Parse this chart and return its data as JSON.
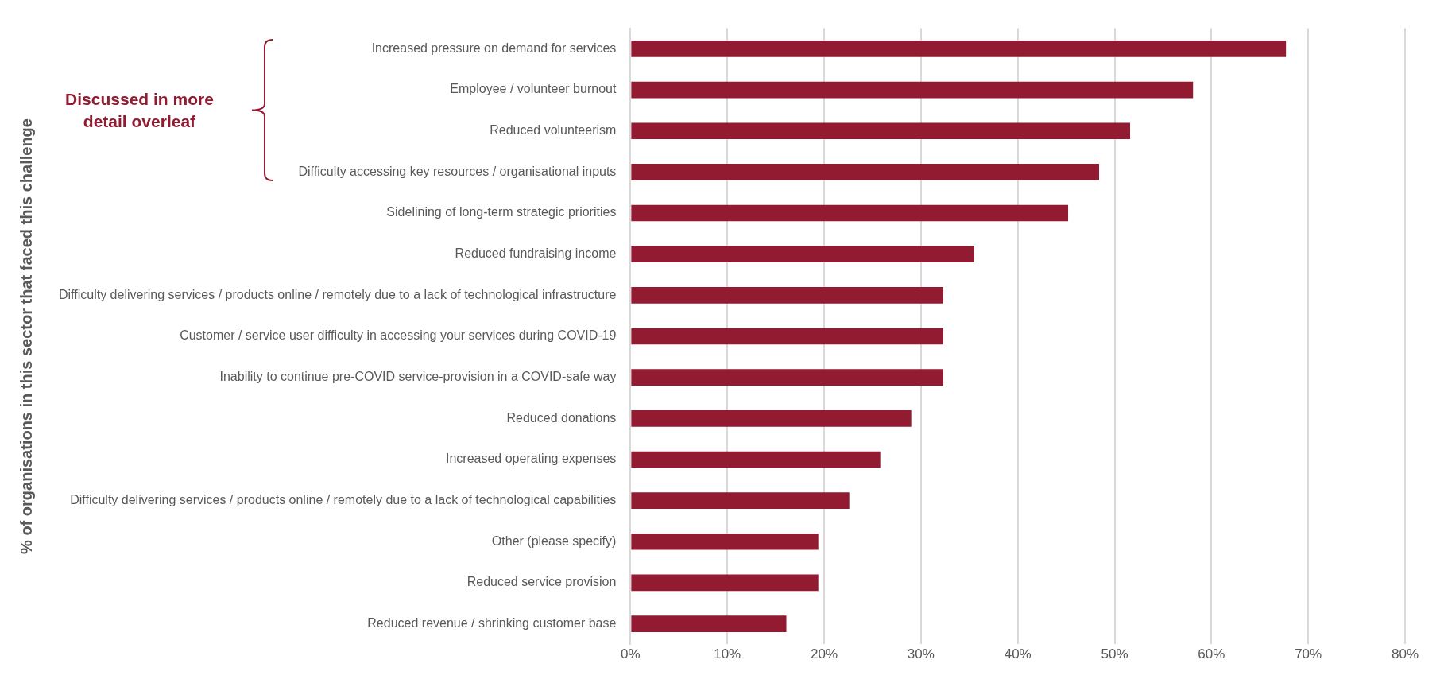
{
  "chart_data": {
    "type": "bar",
    "orientation": "horizontal",
    "ylabel": "% of organisations in this sector that faced this challenge",
    "categories": [
      "Increased pressure on demand for services",
      "Employee / volunteer burnout",
      "Reduced volunteerism",
      "Difficulty accessing key resources / organisational inputs",
      "Sidelining of long-term strategic priorities",
      "Reduced fundraising income",
      "Difficulty delivering services / products online / remotely due to a lack of technological infrastructure",
      "Customer / service user difficulty in accessing your services during COVID-19",
      "Inability to continue pre-COVID service-provision in a COVID-safe way",
      "Reduced donations",
      "Increased operating expenses",
      "Difficulty delivering services / products online / remotely due to a lack of technological capabilities",
      "Other (please specify)",
      "Reduced service provision",
      "Reduced revenue / shrinking customer base"
    ],
    "values": [
      67.7,
      58.1,
      51.6,
      48.4,
      45.2,
      35.5,
      32.3,
      32.3,
      32.3,
      29.0,
      25.8,
      22.6,
      19.4,
      19.4,
      16.1
    ],
    "color": "#921b31",
    "xlim": [
      0,
      80
    ],
    "xticks": [
      {
        "value": 0,
        "label": "0%"
      },
      {
        "value": 10,
        "label": "10%"
      },
      {
        "value": 20,
        "label": "20%"
      },
      {
        "value": 30,
        "label": "30%"
      },
      {
        "value": 40,
        "label": "40%"
      },
      {
        "value": 50,
        "label": "50%"
      },
      {
        "value": 60,
        "label": "60%"
      },
      {
        "value": 70,
        "label": "70%"
      },
      {
        "value": 80,
        "label": "80%"
      }
    ],
    "grid": "x",
    "legend": false,
    "annotations": [
      "Discussed in more detail overleaf"
    ]
  }
}
